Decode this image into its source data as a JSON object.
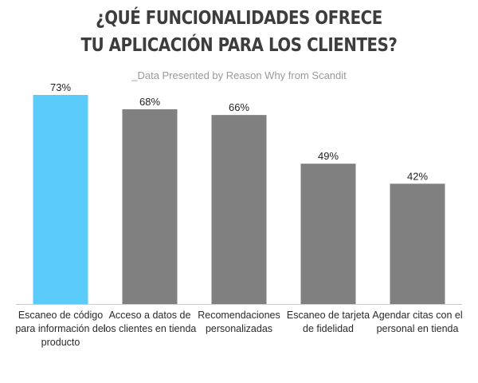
{
  "chart_data": {
    "type": "bar",
    "title_lines": [
      "¿QUÉ FUNCIONALIDADES OFRECE",
      "TU APLICACIÓN PARA LOS CLIENTES?"
    ],
    "subtitle": "_Data Presented by Reason Why from Scandit",
    "categories": [
      "Escaneo de código para información del producto",
      "Acceso a datos de los clientes en tienda",
      "Recomendaciones personalizadas",
      "Escaneo de tarjeta de fidelidad",
      "Agendar citas con el personal en tienda"
    ],
    "values": [
      73,
      68,
      66,
      49,
      42
    ],
    "value_labels": [
      "73%",
      "68%",
      "66%",
      "49%",
      "42%"
    ],
    "ylim": [
      0,
      100
    ],
    "grid": false,
    "colors": {
      "highlight": "#5bcbfa",
      "default": "#808080",
      "axis": "#cccccc"
    }
  }
}
